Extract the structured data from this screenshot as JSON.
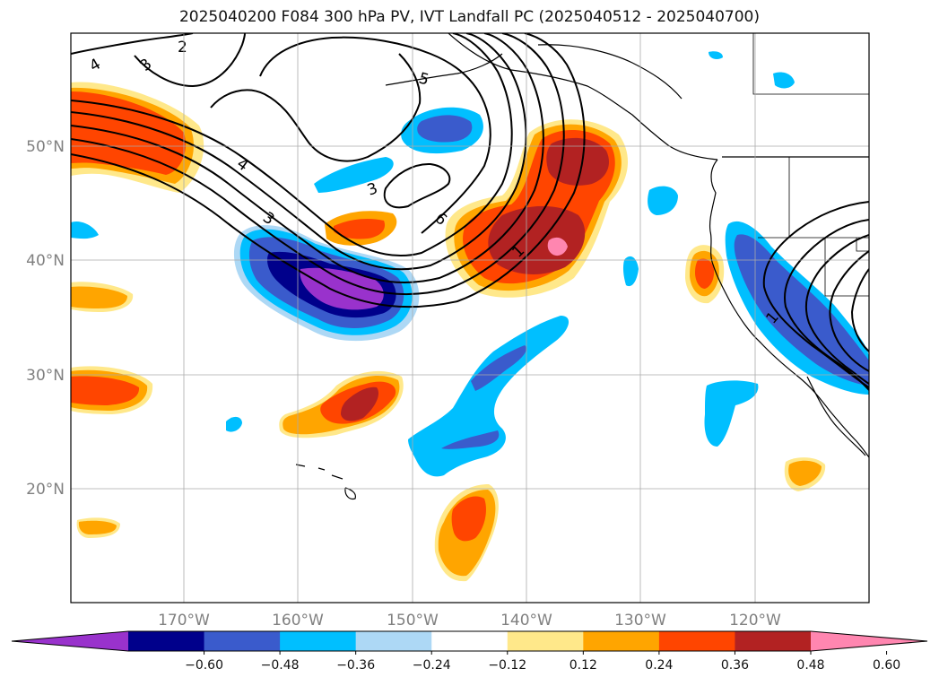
{
  "title": "2025040200 F084 300 hPa PV, IVT Landfall PC (2025040512 - 2025040700)",
  "map": {
    "lat_labels": [
      "50°N",
      "40°N",
      "30°N",
      "20°N"
    ],
    "lon_labels": [
      "170°W",
      "160°W",
      "150°W",
      "140°W",
      "130°W",
      "120°W"
    ],
    "contour_labels": [
      "4",
      "2",
      "3",
      "5",
      "4",
      "3",
      "3",
      "6",
      "1",
      "1"
    ],
    "gridlines": true
  },
  "colorbar": {
    "ticks": [
      "−0.60",
      "−0.48",
      "−0.36",
      "−0.24",
      "−0.12",
      "0.12",
      "0.24",
      "0.36",
      "0.48",
      "0.60"
    ],
    "colors": [
      "#9932cc",
      "#00008b",
      "#3a5bcc",
      "#00bfff",
      "#add8f5",
      "#ffffff",
      "#ffe88a",
      "#ffa500",
      "#ff4500",
      "#b22222",
      "#ff86b0"
    ]
  }
}
